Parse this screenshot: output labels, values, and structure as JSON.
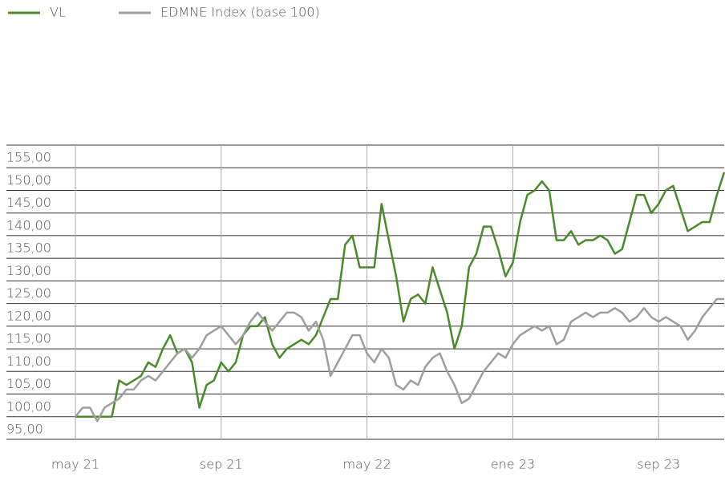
{
  "chart_data": {
    "type": "line",
    "xlim": [
      0,
      89
    ],
    "xticks": [
      {
        "value": 0,
        "label": "may 21"
      },
      {
        "value": 20,
        "label": "sep 21"
      },
      {
        "value": 40,
        "label": "may 22"
      },
      {
        "value": 60,
        "label": "ene 23"
      },
      {
        "value": 80,
        "label": "sep 23"
      }
    ],
    "ylim": [
      95,
      160
    ],
    "yticks": [
      {
        "value": 95,
        "label": "95,00"
      },
      {
        "value": 100,
        "label": "100,00"
      },
      {
        "value": 105,
        "label": "105,00"
      },
      {
        "value": 110,
        "label": "110,00"
      },
      {
        "value": 115,
        "label": "115,00"
      },
      {
        "value": 120,
        "label": "120,00"
      },
      {
        "value": 125,
        "label": "125,00"
      },
      {
        "value": 130,
        "label": "130,00"
      },
      {
        "value": 135,
        "label": "135,00"
      },
      {
        "value": 140,
        "label": "140,00"
      },
      {
        "value": 145,
        "label": "145,00"
      },
      {
        "value": 150,
        "label": "150,00"
      },
      {
        "value": 155,
        "label": "155,00"
      }
    ],
    "grid": true,
    "legend": "top-left",
    "series": [
      {
        "name": "VL",
        "color": "#4a8a2a",
        "values": [
          100,
          100,
          100,
          100,
          100,
          100,
          108,
          107,
          108,
          109,
          112,
          111,
          115,
          118,
          114,
          115,
          112,
          102,
          107,
          108,
          112,
          110,
          112,
          118,
          120,
          120,
          122,
          116,
          113,
          115,
          116,
          117,
          116,
          118,
          122,
          126,
          126,
          138,
          140,
          133,
          133,
          133,
          147,
          139,
          131,
          121,
          126,
          127,
          125,
          133,
          128,
          123,
          115,
          120,
          133,
          136,
          142,
          142,
          137,
          131,
          134,
          143,
          149,
          150,
          152,
          150,
          139,
          139,
          141,
          138,
          139,
          139,
          140,
          139,
          136,
          137,
          143,
          149,
          149,
          145,
          147,
          150,
          151,
          146,
          141,
          142,
          143,
          143,
          149,
          154
        ]
      },
      {
        "name": "EDMNE Index (base 100)",
        "color": "#9e9e9e",
        "values": [
          100,
          102,
          102,
          99,
          102,
          103,
          104,
          106,
          106,
          108,
          109,
          108,
          110,
          112,
          114,
          115,
          113,
          115,
          118,
          119,
          120,
          118,
          116,
          118,
          121,
          123,
          121,
          119,
          121,
          123,
          123,
          122,
          119,
          121,
          117,
          109,
          112,
          115,
          118,
          118,
          114,
          112,
          115,
          113,
          107,
          106,
          108,
          107,
          111,
          113,
          114,
          110,
          107,
          103,
          104,
          107,
          110,
          112,
          114,
          113,
          116,
          118,
          119,
          120,
          119,
          120,
          116,
          117,
          121,
          122,
          123,
          122,
          123,
          123,
          124,
          123,
          121,
          122,
          124,
          122,
          121,
          122,
          121,
          120,
          117,
          119,
          122,
          124,
          126,
          126
        ]
      }
    ]
  }
}
